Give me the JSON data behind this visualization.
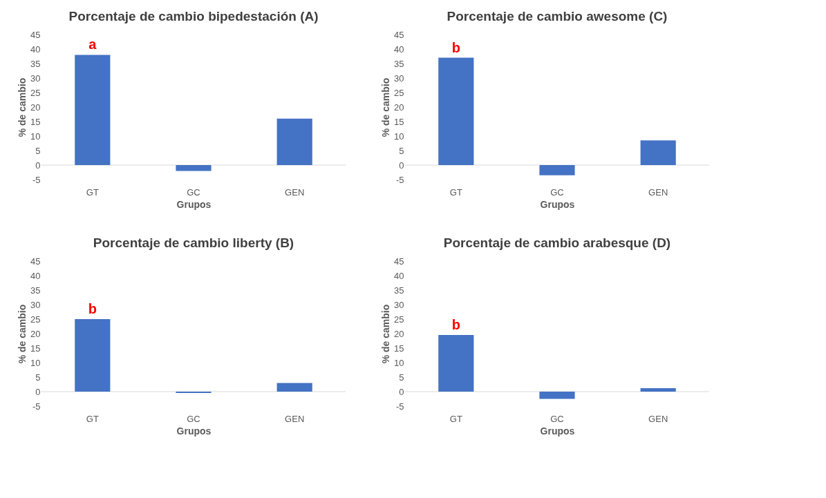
{
  "chart_data": [
    {
      "type": "bar",
      "title": "Porcentaje de cambio bipedestación (A)",
      "xlabel": "Grupos",
      "ylabel": "% de cambio",
      "categories": [
        "GT",
        "GC",
        "GEN"
      ],
      "values": [
        38,
        -2,
        16
      ],
      "color": "#4472c4",
      "ylim": [
        -5,
        45
      ],
      "yticks": [
        -5,
        0,
        5,
        10,
        15,
        20,
        25,
        30,
        35,
        40,
        45
      ],
      "grid": false,
      "annotations": [
        {
          "text": "a",
          "x": "GT",
          "y": 38
        }
      ]
    },
    {
      "type": "bar",
      "title": "Porcentaje de cambio awesome (C)",
      "xlabel": "Grupos",
      "ylabel": "% de cambio",
      "categories": [
        "GT",
        "GC",
        "GEN"
      ],
      "values": [
        37,
        -3.5,
        8.5
      ],
      "color": "#4472c4",
      "ylim": [
        -5,
        45
      ],
      "yticks": [
        -5,
        0,
        5,
        10,
        15,
        20,
        25,
        30,
        35,
        40,
        45
      ],
      "grid": false,
      "annotations": [
        {
          "text": "b",
          "x": "GT",
          "y": 37
        }
      ]
    },
    {
      "type": "bar",
      "title": "Porcentaje de cambio liberty (B)",
      "xlabel": "Grupos",
      "ylabel": "% de cambio",
      "categories": [
        "GT",
        "GC",
        "GEN"
      ],
      "values": [
        25,
        -0.5,
        3
      ],
      "color": "#4472c4",
      "ylim": [
        -5,
        45
      ],
      "yticks": [
        -5,
        0,
        5,
        10,
        15,
        20,
        25,
        30,
        35,
        40,
        45
      ],
      "grid": false,
      "annotations": [
        {
          "text": "b",
          "x": "GT",
          "y": 25
        }
      ]
    },
    {
      "type": "bar",
      "title": "Porcentaje de cambio arabesque (D)",
      "xlabel": "Grupos",
      "ylabel": "% de cambio",
      "categories": [
        "GT",
        "GC",
        "GEN"
      ],
      "values": [
        19.5,
        -2.5,
        1.2
      ],
      "color": "#4472c4",
      "ylim": [
        -5,
        45
      ],
      "yticks": [
        -5,
        0,
        5,
        10,
        15,
        20,
        25,
        30,
        35,
        40,
        45
      ],
      "grid": false,
      "annotations": [
        {
          "text": "b",
          "x": "GT",
          "y": 19.5
        }
      ]
    }
  ]
}
